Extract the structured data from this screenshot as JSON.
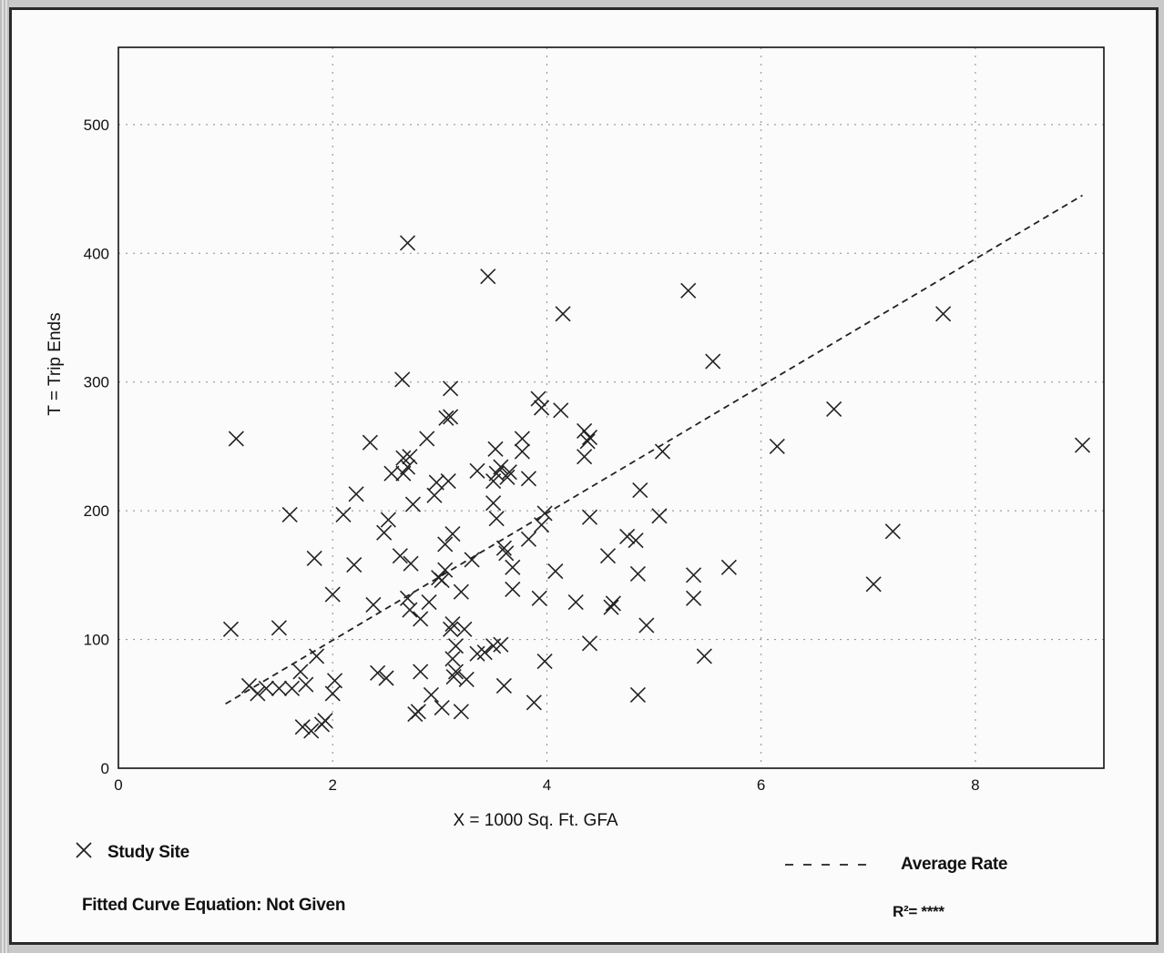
{
  "chart_data": {
    "type": "scatter",
    "xlabel": "X = 1000 Sq. Ft. GFA",
    "ylabel": "T = Trip Ends",
    "xlim": [
      0,
      9.2
    ],
    "ylim": [
      0,
      560
    ],
    "x_ticks": [
      0,
      2,
      4,
      6,
      8
    ],
    "y_ticks": [
      0,
      100,
      200,
      300,
      400,
      500
    ],
    "grid": true,
    "series": [
      {
        "name": "Study Site",
        "marker": "x",
        "points": [
          [
            1.05,
            108
          ],
          [
            1.1,
            256
          ],
          [
            1.6,
            197
          ],
          [
            1.5,
            109
          ],
          [
            1.22,
            64
          ],
          [
            1.3,
            58
          ],
          [
            1.38,
            62
          ],
          [
            1.5,
            62
          ],
          [
            1.62,
            62
          ],
          [
            1.7,
            75
          ],
          [
            1.75,
            65
          ],
          [
            1.72,
            32
          ],
          [
            1.8,
            29
          ],
          [
            1.9,
            34
          ],
          [
            1.93,
            37
          ],
          [
            1.85,
            87
          ],
          [
            1.83,
            163
          ],
          [
            2.0,
            58
          ],
          [
            2.02,
            68
          ],
          [
            2.0,
            135
          ],
          [
            2.1,
            197
          ],
          [
            2.22,
            213
          ],
          [
            2.2,
            158
          ],
          [
            2.35,
            253
          ],
          [
            2.38,
            127
          ],
          [
            2.42,
            74
          ],
          [
            2.5,
            70
          ],
          [
            2.48,
            183
          ],
          [
            2.52,
            193
          ],
          [
            2.55,
            229
          ],
          [
            2.63,
            165
          ],
          [
            2.66,
            241
          ],
          [
            2.66,
            229
          ],
          [
            2.7,
            234
          ],
          [
            2.72,
            242
          ],
          [
            2.7,
            132
          ],
          [
            2.72,
            123
          ],
          [
            2.73,
            159
          ],
          [
            2.75,
            205
          ],
          [
            2.77,
            42
          ],
          [
            2.8,
            44
          ],
          [
            2.82,
            116
          ],
          [
            2.82,
            75
          ],
          [
            2.7,
            408
          ],
          [
            2.65,
            302
          ],
          [
            2.88,
            256
          ],
          [
            2.9,
            129
          ],
          [
            2.92,
            57
          ],
          [
            2.95,
            212
          ],
          [
            2.97,
            222
          ],
          [
            2.99,
            148
          ],
          [
            3.02,
            146
          ],
          [
            3.02,
            47
          ],
          [
            3.05,
            154
          ],
          [
            3.05,
            174
          ],
          [
            3.06,
            272
          ],
          [
            3.08,
            223
          ],
          [
            3.1,
            273
          ],
          [
            3.1,
            295
          ],
          [
            3.1,
            108
          ],
          [
            3.12,
            112
          ],
          [
            3.12,
            182
          ],
          [
            3.12,
            85
          ],
          [
            3.13,
            71
          ],
          [
            3.15,
            75
          ],
          [
            3.15,
            95
          ],
          [
            3.2,
            137
          ],
          [
            3.2,
            44
          ],
          [
            3.23,
            108
          ],
          [
            3.25,
            69
          ],
          [
            3.3,
            162
          ],
          [
            3.35,
            231
          ],
          [
            3.35,
            89
          ],
          [
            3.42,
            90
          ],
          [
            3.45,
            382
          ],
          [
            3.5,
            223
          ],
          [
            3.5,
            206
          ],
          [
            3.5,
            95
          ],
          [
            3.52,
            248
          ],
          [
            3.53,
            194
          ],
          [
            3.53,
            229
          ],
          [
            3.57,
            234
          ],
          [
            3.57,
            96
          ],
          [
            3.6,
            171
          ],
          [
            3.6,
            64
          ],
          [
            3.62,
            167
          ],
          [
            3.63,
            226
          ],
          [
            3.65,
            230
          ],
          [
            3.68,
            156
          ],
          [
            3.68,
            139
          ],
          [
            3.77,
            256
          ],
          [
            3.77,
            246
          ],
          [
            3.83,
            225
          ],
          [
            3.83,
            178
          ],
          [
            3.88,
            51
          ],
          [
            3.92,
            287
          ],
          [
            3.95,
            280
          ],
          [
            3.93,
            132
          ],
          [
            3.95,
            189
          ],
          [
            3.98,
            198
          ],
          [
            3.98,
            83
          ],
          [
            4.08,
            153
          ],
          [
            4.13,
            278
          ],
          [
            4.15,
            353
          ],
          [
            4.27,
            129
          ],
          [
            4.35,
            242
          ],
          [
            4.35,
            262
          ],
          [
            4.38,
            254
          ],
          [
            4.4,
            257
          ],
          [
            4.4,
            195
          ],
          [
            4.4,
            97
          ],
          [
            4.57,
            165
          ],
          [
            4.6,
            125
          ],
          [
            4.62,
            128
          ],
          [
            4.75,
            180
          ],
          [
            4.83,
            177
          ],
          [
            4.85,
            151
          ],
          [
            4.87,
            216
          ],
          [
            4.85,
            57
          ],
          [
            4.93,
            111
          ],
          [
            5.05,
            196
          ],
          [
            5.08,
            246
          ],
          [
            5.32,
            371
          ],
          [
            5.37,
            150
          ],
          [
            5.37,
            132
          ],
          [
            5.47,
            87
          ],
          [
            5.55,
            316
          ],
          [
            5.7,
            156
          ],
          [
            6.15,
            250
          ],
          [
            6.68,
            279
          ],
          [
            7.05,
            143
          ],
          [
            7.23,
            184
          ],
          [
            7.7,
            353
          ],
          [
            9.0,
            251
          ]
        ]
      }
    ],
    "average_rate": {
      "name": "Average Rate",
      "style": "dashed",
      "line": [
        [
          1.0,
          50
        ],
        [
          9.0,
          445
        ]
      ]
    }
  },
  "legend": {
    "study_site_label": "Study Site",
    "average_rate_label": "Average Rate",
    "fitted_curve_label": "Fitted Curve Equation: Not Given",
    "r2_label": "R²= ****"
  },
  "colors": {
    "marker": "#222222",
    "grid": "#8a8a8a",
    "axis": "#111111"
  }
}
